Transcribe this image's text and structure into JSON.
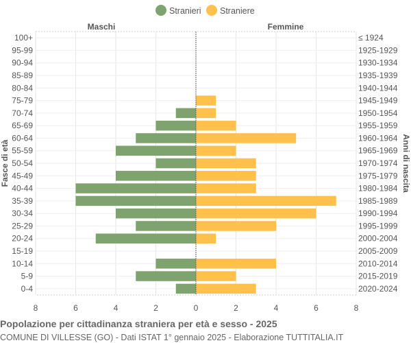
{
  "chart_data": {
    "type": "bar",
    "orientation": "horizontal-pyramid",
    "legend": {
      "position": "top",
      "entries": [
        {
          "label": "Stranieri",
          "color": "#7fa36e"
        },
        {
          "label": "Straniere",
          "color": "#ffc04c"
        }
      ]
    },
    "left_header": "Maschi",
    "right_header": "Femmine",
    "ylabel_left": "Fasce di età",
    "ylabel_right": "Anni di nascita",
    "categories": [
      "100+",
      "95-99",
      "90-94",
      "85-89",
      "80-84",
      "75-79",
      "70-74",
      "65-69",
      "60-64",
      "55-59",
      "50-54",
      "45-49",
      "40-44",
      "35-39",
      "30-34",
      "25-29",
      "20-24",
      "15-19",
      "10-14",
      "5-9",
      "0-4"
    ],
    "birth_years": [
      "≤ 1924",
      "1925-1929",
      "1930-1934",
      "1935-1939",
      "1940-1944",
      "1945-1949",
      "1950-1954",
      "1955-1959",
      "1960-1964",
      "1965-1969",
      "1970-1974",
      "1975-1979",
      "1980-1984",
      "1985-1989",
      "1990-1994",
      "1995-1999",
      "2000-2004",
      "2005-2009",
      "2010-2014",
      "2015-2019",
      "2020-2024"
    ],
    "series": [
      {
        "name": "Stranieri",
        "color": "#7fa36e",
        "values": [
          0,
          0,
          0,
          0,
          0,
          0,
          1,
          2,
          3,
          4,
          2,
          4,
          6,
          6,
          4,
          3,
          5,
          0,
          2,
          3,
          1
        ]
      },
      {
        "name": "Straniere",
        "color": "#ffc04c",
        "values": [
          0,
          0,
          0,
          0,
          0,
          1,
          1,
          2,
          5,
          2,
          3,
          3,
          3,
          7,
          6,
          4,
          1,
          0,
          4,
          2,
          3
        ]
      }
    ],
    "xlim": [
      -8,
      8
    ],
    "xticks": [
      "8",
      "6",
      "4",
      "2",
      "0",
      "2",
      "4",
      "6",
      "8"
    ],
    "grid": true
  },
  "title": "Popolazione per cittadinanza straniera per età e sesso - 2025",
  "subtitle": "COMUNE DI VILLESSE (GO) - Dati ISTAT 1° gennaio 2025 - Elaborazione TUTTITALIA.IT"
}
